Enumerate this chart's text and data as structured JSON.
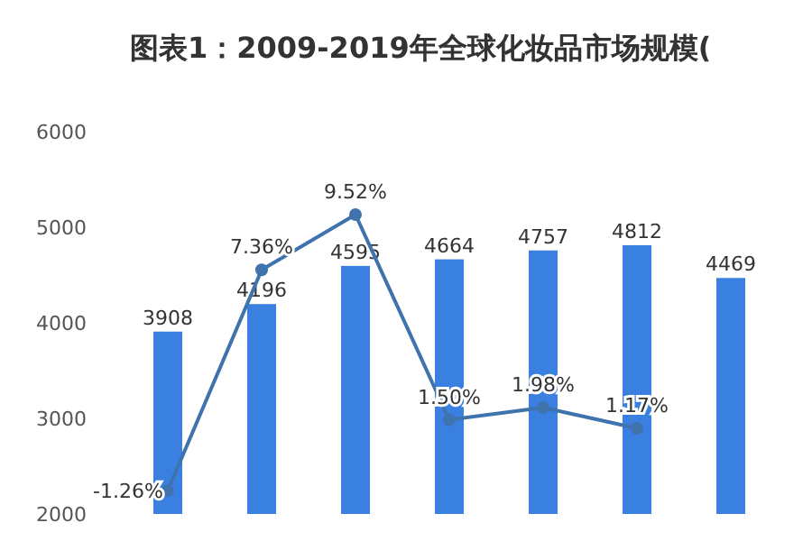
{
  "chart_data": [
    {
      "type": "bar",
      "title": "图表1：2009-2019年全球化妆品市场规模(",
      "categories": [
        null,
        null,
        null,
        null,
        null,
        null,
        null
      ],
      "series": [
        {
          "color": "#3a80e0",
          "values": [
            3908,
            4196,
            4595,
            4664,
            4757,
            4812,
            4469
          ]
        }
      ],
      "ylim": [
        2000,
        6000
      ],
      "yticks": [
        2000,
        3000,
        4000,
        5000,
        6000
      ],
      "data_labels": true,
      "tick_labels": "y"
    },
    {
      "type": "line",
      "categories": [
        null,
        null,
        null,
        null,
        null,
        null
      ],
      "series": [
        {
          "color": "#3f73ad",
          "values": [
            -1.26,
            7.36,
            9.52,
            1.5,
            1.98,
            1.17
          ],
          "value_labels": [
            "-1.26%",
            "7.36%",
            "9.52%",
            "1.50%",
            "1.98%",
            "1.17%"
          ]
        }
      ],
      "marker": "circle",
      "tick_labels": false
    }
  ]
}
